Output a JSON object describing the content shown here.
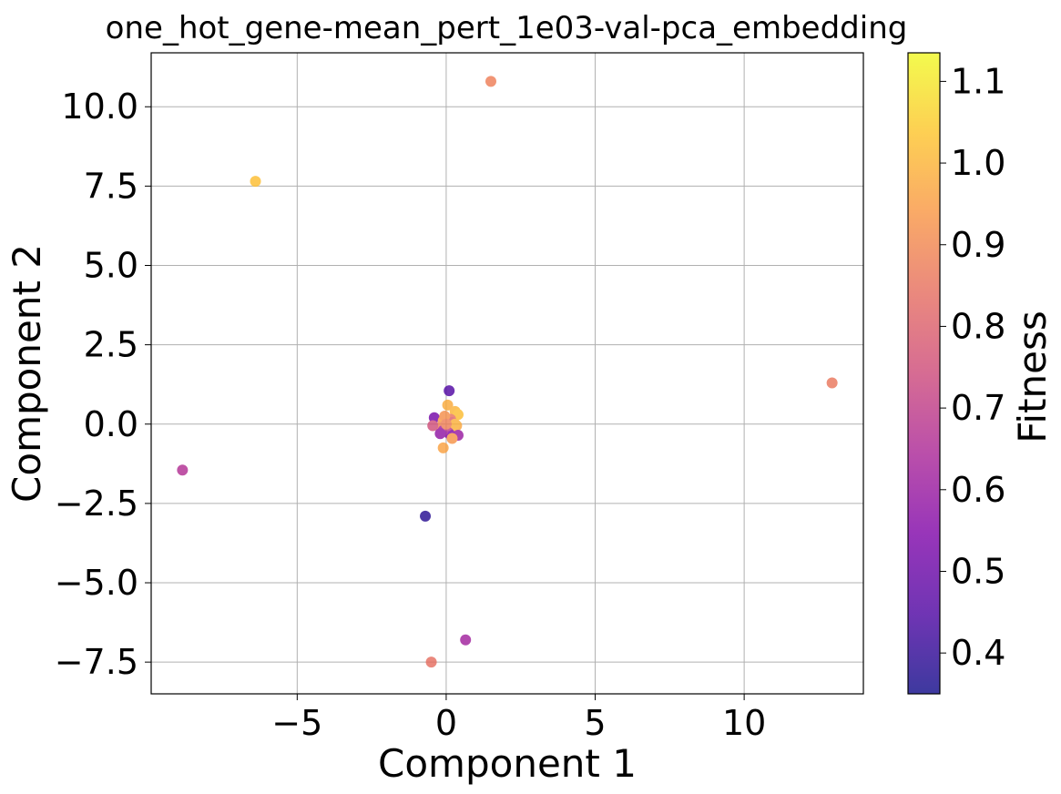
{
  "chart_data": {
    "type": "scatter",
    "title": "one_hot_gene-mean_pert_1e03-val-pca_embedding",
    "xlabel": "Component 1",
    "ylabel": "Component 2",
    "xlim": [
      -9.9,
      14.0
    ],
    "ylim": [
      -8.5,
      11.7
    ],
    "x_ticks": [
      -5,
      0,
      5,
      10
    ],
    "x_tick_labels": [
      "−5",
      "0",
      "5",
      "10"
    ],
    "y_ticks": [
      -7.5,
      -5.0,
      -2.5,
      0.0,
      2.5,
      5.0,
      7.5,
      10.0
    ],
    "y_tick_labels": [
      "−7.5",
      "−5.0",
      "−2.5",
      "0.0",
      "2.5",
      "5.0",
      "7.5",
      "10.0"
    ],
    "grid": true,
    "colorbar": {
      "label": "Fitness",
      "colormap": "plasma",
      "range": [
        0.35,
        1.135
      ],
      "ticks": [
        0.4,
        0.5,
        0.6,
        0.7,
        0.8,
        0.9,
        1.0,
        1.1
      ],
      "tick_labels": [
        "0.4",
        "0.5",
        "0.6",
        "0.7",
        "0.8",
        "0.9",
        "1.0",
        "1.1"
      ]
    },
    "points": [
      {
        "x": 1.5,
        "y": 10.8,
        "fitness": 0.88
      },
      {
        "x": -6.4,
        "y": 7.65,
        "fitness": 1.02
      },
      {
        "x": 12.95,
        "y": 1.3,
        "fitness": 0.86
      },
      {
        "x": -8.85,
        "y": -1.45,
        "fitness": 0.66
      },
      {
        "x": -0.7,
        "y": -2.9,
        "fitness": 0.38
      },
      {
        "x": 0.65,
        "y": -6.8,
        "fitness": 0.62
      },
      {
        "x": -0.5,
        "y": -7.5,
        "fitness": 0.84
      },
      {
        "x": 0.1,
        "y": 1.05,
        "fitness": 0.45
      },
      {
        "x": -0.4,
        "y": 0.2,
        "fitness": 0.52
      },
      {
        "x": 0.05,
        "y": 0.6,
        "fitness": 0.98
      },
      {
        "x": 0.3,
        "y": 0.4,
        "fitness": 1.0
      },
      {
        "x": 0.4,
        "y": 0.3,
        "fitness": 1.02
      },
      {
        "x": -0.1,
        "y": 0.1,
        "fitness": 0.95
      },
      {
        "x": 0.15,
        "y": 0.15,
        "fitness": 0.85
      },
      {
        "x": -0.2,
        "y": -0.1,
        "fitness": 0.9
      },
      {
        "x": -0.45,
        "y": -0.05,
        "fitness": 0.75
      },
      {
        "x": 0.35,
        "y": -0.05,
        "fitness": 0.97
      },
      {
        "x": 0.25,
        "y": -0.25,
        "fitness": 1.0
      },
      {
        "x": 0.4,
        "y": -0.35,
        "fitness": 0.6
      },
      {
        "x": 0.1,
        "y": -0.3,
        "fitness": 0.55
      },
      {
        "x": -0.1,
        "y": -0.2,
        "fitness": 0.62
      },
      {
        "x": -0.2,
        "y": -0.3,
        "fitness": 0.58
      },
      {
        "x": 0.05,
        "y": -0.05,
        "fitness": 0.7
      },
      {
        "x": 0.2,
        "y": 0.05,
        "fitness": 0.8
      },
      {
        "x": -0.05,
        "y": 0.25,
        "fitness": 0.92
      },
      {
        "x": 0.2,
        "y": -0.45,
        "fitness": 0.93
      },
      {
        "x": -0.1,
        "y": -0.75,
        "fitness": 0.96
      },
      {
        "x": 0.3,
        "y": 0.0,
        "fitness": 0.99
      },
      {
        "x": 0.0,
        "y": 0.0,
        "fitness": 0.88
      }
    ]
  }
}
